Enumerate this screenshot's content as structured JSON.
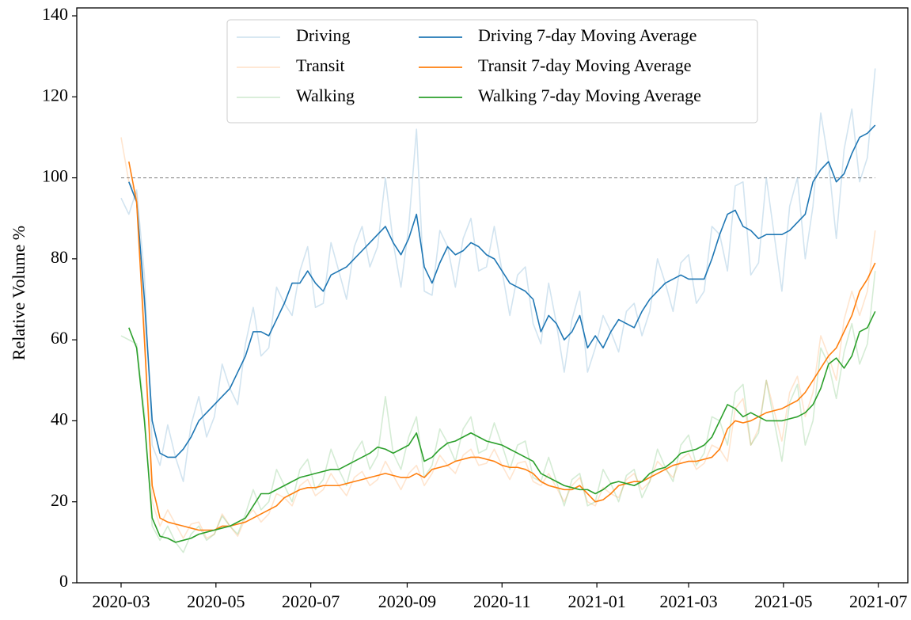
{
  "chart_data": {
    "type": "line",
    "y_label": "Relative Volume %",
    "x": [
      0,
      5,
      10,
      15,
      20,
      25,
      30,
      35,
      40,
      45,
      50,
      55,
      60,
      65,
      70,
      75,
      80,
      85,
      90,
      95,
      100,
      105,
      110,
      115,
      120,
      125,
      130,
      135,
      140,
      145,
      150,
      155,
      160,
      165,
      170,
      175,
      180,
      185,
      190,
      195,
      200,
      205,
      210,
      215,
      220,
      225,
      230,
      235,
      240,
      245,
      250,
      255,
      260,
      265,
      270,
      275,
      280,
      285,
      290,
      295,
      300,
      305,
      310,
      315,
      320,
      325,
      330,
      335,
      340,
      345,
      350,
      355,
      360,
      365,
      370,
      375,
      380,
      385,
      390,
      395,
      400,
      405,
      410,
      415,
      420,
      425,
      430,
      435,
      440,
      445,
      450,
      455,
      460,
      465,
      470,
      475,
      480,
      485
    ],
    "xlim": [
      -28.5,
      506
    ],
    "xticks": [
      {
        "value": 0,
        "label": "2020-03"
      },
      {
        "value": 61,
        "label": "2020-05"
      },
      {
        "value": 122,
        "label": "2020-07"
      },
      {
        "value": 184,
        "label": "2020-09"
      },
      {
        "value": 245,
        "label": "2020-11"
      },
      {
        "value": 306,
        "label": "2021-01"
      },
      {
        "value": 365,
        "label": "2021-03"
      },
      {
        "value": 426,
        "label": "2021-05"
      },
      {
        "value": 487,
        "label": "2021-07"
      }
    ],
    "ylim": [
      0,
      140
    ],
    "yticks": [
      0,
      20,
      40,
      60,
      80,
      100,
      120,
      140
    ],
    "reference_line": {
      "value": 100,
      "color": "#7f7f7f",
      "style": "dashed"
    },
    "legend": "upper center",
    "legend_columns": 2,
    "series": [
      {
        "name": "Driving",
        "color": "#1f77b4",
        "opacity": 0.2,
        "values": [
          95,
          91,
          97,
          76,
          34,
          29,
          39,
          31,
          25,
          39,
          46,
          36,
          41,
          54,
          48,
          44,
          59,
          68,
          56,
          58,
          73,
          69,
          66,
          77,
          83,
          68,
          69,
          84,
          77,
          70,
          83,
          88,
          78,
          83,
          100,
          84,
          73,
          88,
          112,
          72,
          71,
          87,
          83,
          73,
          85,
          90,
          77,
          78,
          88,
          77,
          66,
          76,
          78,
          64,
          59,
          74,
          64,
          52,
          65,
          72,
          52,
          58,
          66,
          62,
          57,
          67,
          69,
          61,
          67,
          80,
          74,
          67,
          79,
          81,
          69,
          72,
          88,
          86,
          77,
          98,
          99,
          76,
          79,
          100,
          86,
          72,
          93,
          100,
          80,
          93,
          116,
          104,
          85,
          107,
          117,
          99,
          105,
          127
        ]
      },
      {
        "name": "Transit",
        "color": "#ff7f0e",
        "opacity": 0.2,
        "values": [
          110,
          99,
          96,
          64,
          20,
          14,
          18,
          14.5,
          11,
          14.5,
          15,
          11,
          12,
          17,
          14,
          11.5,
          16,
          18,
          15,
          17,
          22,
          21,
          19,
          24,
          25.5,
          21.5,
          23,
          27,
          24,
          21.5,
          26,
          27.5,
          24,
          25.5,
          30,
          26.5,
          23,
          27,
          29,
          24,
          27,
          31.5,
          29,
          27,
          31.5,
          33,
          29,
          29.5,
          33,
          29,
          25.5,
          29.5,
          30,
          25,
          24,
          27,
          23.5,
          20,
          24,
          26,
          20,
          19,
          23.5,
          22,
          21,
          25.5,
          27,
          23,
          25,
          30,
          28,
          26,
          30.5,
          32,
          28,
          29.5,
          34,
          33,
          30,
          43,
          45.5,
          34,
          38,
          50,
          42.5,
          35,
          47,
          51,
          41,
          47,
          61,
          56,
          50,
          65,
          72,
          66,
          72,
          87
        ]
      },
      {
        "name": "Walking",
        "color": "#2ca02c",
        "opacity": 0.2,
        "values": [
          61,
          60,
          59,
          42,
          14,
          10.5,
          14,
          10,
          7.5,
          12,
          14,
          10.5,
          12,
          16.5,
          14,
          12,
          17,
          23,
          18,
          20,
          28,
          24,
          20,
          28,
          30.5,
          23,
          25.5,
          33,
          28,
          24,
          32,
          35,
          28,
          31.5,
          46,
          32,
          28,
          36,
          41,
          26,
          29,
          38,
          34.5,
          30,
          38,
          41,
          32,
          33,
          39.5,
          34,
          28,
          34,
          35,
          26,
          25,
          31,
          25,
          19,
          25.5,
          27,
          19,
          20,
          28,
          24.5,
          20,
          26.5,
          28,
          21,
          25,
          33,
          28.5,
          25,
          34,
          36.5,
          29,
          32,
          41,
          40,
          34,
          47,
          49,
          34,
          37,
          50,
          40,
          30,
          44.5,
          49,
          34,
          40,
          58,
          54,
          45.5,
          57,
          64,
          54,
          59,
          77
        ]
      },
      {
        "name": "Driving 7-day Moving Average",
        "color": "#1f77b4",
        "opacity": 1,
        "values": [
          null,
          99,
          94,
          70,
          40,
          32,
          31,
          31,
          33,
          36,
          40,
          42,
          44,
          46,
          48,
          52,
          56,
          62,
          62,
          61,
          65,
          69,
          74,
          74,
          77,
          74,
          72,
          76,
          77,
          78,
          80,
          82,
          84,
          86,
          88,
          84,
          81,
          85,
          91,
          78,
          74,
          79,
          83,
          81,
          82,
          84,
          83,
          81,
          80,
          77,
          74,
          73,
          72,
          70,
          62,
          66,
          64,
          60,
          62,
          66,
          58,
          61,
          58,
          62,
          65,
          64,
          63,
          67,
          70,
          72,
          74,
          75,
          76,
          75,
          75,
          75,
          80,
          86,
          91,
          92,
          88,
          87,
          85,
          86,
          86,
          86,
          87,
          89,
          91,
          99,
          102,
          104,
          99,
          101,
          106,
          110,
          111,
          113
        ]
      },
      {
        "name": "Transit 7-day Moving Average",
        "color": "#ff7f0e",
        "opacity": 1,
        "values": [
          null,
          104,
          94,
          60,
          24,
          16,
          15,
          14.5,
          14,
          13.5,
          13,
          13,
          13,
          14,
          14,
          14.5,
          15,
          16,
          17,
          18,
          19,
          21,
          22,
          23,
          23.5,
          23.5,
          24,
          24,
          24,
          24.5,
          25,
          25.5,
          26,
          26.5,
          27,
          26.5,
          26,
          26,
          27,
          26,
          28,
          28.5,
          29,
          30,
          30.5,
          31,
          31,
          30.5,
          30,
          29,
          28.5,
          28.5,
          28,
          27,
          25,
          24,
          23.5,
          23,
          23,
          24,
          22,
          20,
          20.5,
          22,
          24,
          24.5,
          25,
          25,
          26,
          27,
          28,
          29,
          29.5,
          30,
          30,
          30.5,
          31,
          33,
          38,
          40,
          39.5,
          40,
          41,
          42,
          42.5,
          43,
          44,
          45,
          47,
          50,
          53,
          56,
          58,
          62,
          66,
          72,
          75,
          79
        ]
      },
      {
        "name": "Walking 7-day Moving Average",
        "color": "#2ca02c",
        "opacity": 1,
        "values": [
          null,
          63,
          58,
          40,
          16,
          11.5,
          11,
          10,
          10.5,
          11,
          12,
          12.5,
          13,
          13.5,
          14,
          15,
          16,
          19,
          22,
          22,
          23,
          24,
          25,
          26,
          26.5,
          27,
          27.5,
          28,
          28,
          29,
          30,
          31,
          32,
          33.5,
          33,
          32,
          33,
          34,
          37,
          30,
          31,
          33,
          34.5,
          35,
          36,
          37,
          36,
          35,
          34.5,
          34,
          33,
          32,
          31,
          30,
          27,
          26,
          25,
          24,
          23.5,
          23,
          23,
          22,
          23,
          24.5,
          25,
          24.5,
          24,
          25,
          27,
          28,
          28.5,
          30,
          32,
          32.5,
          33,
          34,
          36,
          40,
          44,
          43,
          41,
          42,
          41,
          40,
          40,
          40,
          40.5,
          41,
          42,
          44,
          48,
          54,
          55.5,
          53,
          56,
          62,
          63,
          67
        ]
      }
    ]
  }
}
